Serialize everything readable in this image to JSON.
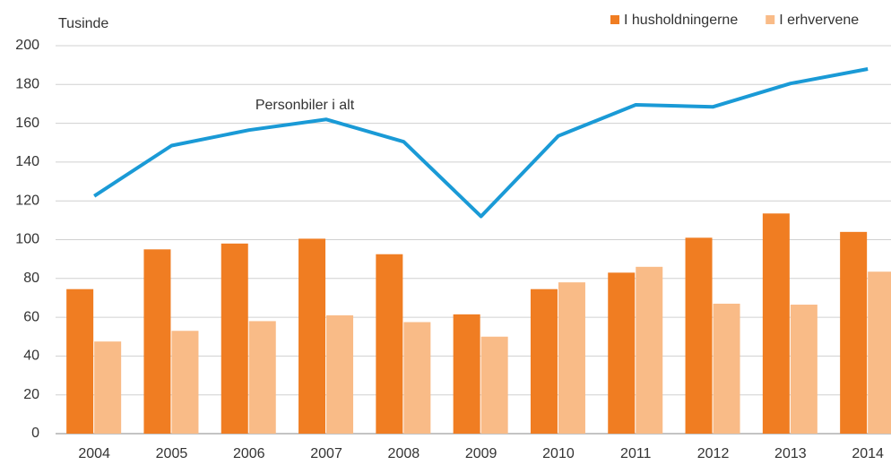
{
  "chart_data": {
    "type": "bar_line",
    "y_label": "Tusinde",
    "categories": [
      "2004",
      "2005",
      "2006",
      "2007",
      "2008",
      "2009",
      "2010",
      "2011",
      "2012",
      "2013",
      "2014"
    ],
    "series": [
      {
        "name": "I husholdningerne",
        "type": "bar",
        "color": "#f07d22",
        "values": [
          74.5,
          95,
          98,
          100.5,
          92.5,
          61.5,
          74.5,
          83,
          101,
          113.5,
          104
        ]
      },
      {
        "name": "I erhvervene",
        "type": "bar",
        "color": "#f9bb87",
        "values": [
          47.5,
          53,
          58,
          61,
          57.5,
          50,
          78,
          86,
          67,
          66.5,
          83.5
        ]
      },
      {
        "name": "Personbiler i alt",
        "type": "line",
        "color": "#1a9ad6",
        "values": [
          122.5,
          148.5,
          156.5,
          162,
          150.5,
          112,
          153.5,
          169.5,
          168.5,
          180.5,
          188
        ]
      }
    ],
    "ylim": [
      0,
      200
    ],
    "yticks": [
      0,
      20,
      40,
      60,
      80,
      100,
      120,
      140,
      160,
      180,
      200
    ],
    "grid": true,
    "legend": "top-right"
  }
}
